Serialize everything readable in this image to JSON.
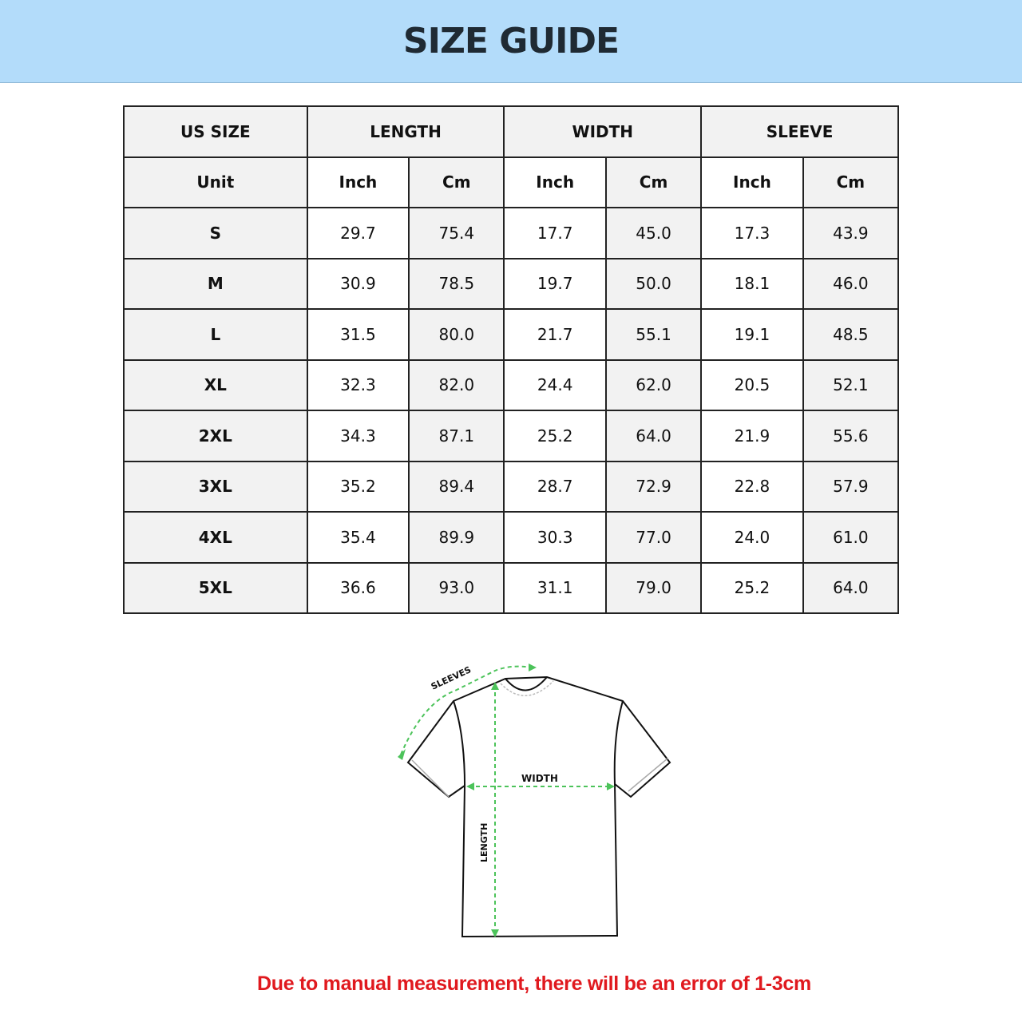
{
  "title": "SIZE GUIDE",
  "table": {
    "header1": [
      "US SIZE",
      "LENGTH",
      "WIDTH",
      "SLEEVE"
    ],
    "header2": [
      "Unit",
      "Inch",
      "Cm",
      "Inch",
      "Cm",
      "Inch",
      "Cm"
    ],
    "rows": [
      [
        "S",
        "29.7",
        "75.4",
        "17.7",
        "45.0",
        "17.3",
        "43.9"
      ],
      [
        "M",
        "30.9",
        "78.5",
        "19.7",
        "50.0",
        "18.1",
        "46.0"
      ],
      [
        "L",
        "31.5",
        "80.0",
        "21.7",
        "55.1",
        "19.1",
        "48.5"
      ],
      [
        "XL",
        "32.3",
        "82.0",
        "24.4",
        "62.0",
        "20.5",
        "52.1"
      ],
      [
        "2XL",
        "34.3",
        "87.1",
        "25.2",
        "64.0",
        "21.9",
        "55.6"
      ],
      [
        "3XL",
        "35.2",
        "89.4",
        "28.7",
        "72.9",
        "22.8",
        "57.9"
      ],
      [
        "4XL",
        "35.4",
        "89.9",
        "30.3",
        "77.0",
        "24.0",
        "61.0"
      ],
      [
        "5XL",
        "36.6",
        "93.0",
        "31.1",
        "79.0",
        "25.2",
        "64.0"
      ]
    ]
  },
  "diagram": {
    "sleeves": "SLEEVES",
    "width": "WIDTH",
    "length": "LENGTH",
    "arrow_color": "#4cc35a"
  },
  "note": "Due to manual measurement, there will be an error of 1-3cm",
  "colors": {
    "banner": "#b3dcfa",
    "note": "#e0191e"
  }
}
